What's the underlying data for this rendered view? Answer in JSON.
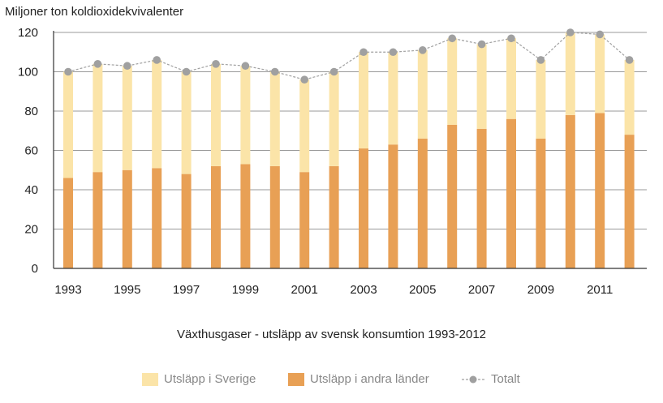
{
  "chart_data": {
    "type": "bar",
    "stacked": true,
    "title": "",
    "caption": "Växthusgaser - utsläpp av svensk konsumtion 1993-2012",
    "ylabel": "Miljoner ton koldioxidekvivalenter",
    "xlabel": "",
    "ylim": [
      0,
      120
    ],
    "yticks": [
      0,
      20,
      40,
      60,
      80,
      100,
      120
    ],
    "grid": true,
    "legend_position": "bottom",
    "categories": [
      "1993",
      "1994",
      "1995",
      "1996",
      "1997",
      "1998",
      "1999",
      "2000",
      "2001",
      "2002",
      "2003",
      "2004",
      "2005",
      "2006",
      "2007",
      "2008",
      "2009",
      "2010",
      "2011",
      "2012"
    ],
    "xtick_labels": [
      "1993",
      "",
      "1995",
      "",
      "1997",
      "",
      "1999",
      "",
      "2001",
      "",
      "2003",
      "",
      "2005",
      "",
      "2007",
      "",
      "2009",
      "",
      "2011",
      ""
    ],
    "series": [
      {
        "name": "Utsläpp i andra länder",
        "color": "#E8A055",
        "values": [
          46,
          49,
          50,
          51,
          48,
          52,
          53,
          52,
          49,
          52,
          61,
          63,
          66,
          73,
          71,
          76,
          66,
          78,
          79,
          68
        ]
      },
      {
        "name": "Utsläpp i Sverige",
        "color": "#FBE4A8",
        "values": [
          54,
          55,
          53,
          55,
          52,
          52,
          50,
          48,
          47,
          48,
          49,
          47,
          45,
          44,
          43,
          41,
          40,
          42,
          40,
          38
        ]
      },
      {
        "name": "Totalt",
        "type": "line",
        "color": "#A0A0A0",
        "values": [
          100,
          104,
          103,
          106,
          100,
          104,
          103,
          100,
          96,
          100,
          110,
          110,
          111,
          117,
          114,
          117,
          106,
          120,
          119,
          106
        ]
      }
    ],
    "legend_order": [
      "Utsläpp i Sverige",
      "Utsläpp i andra länder",
      "Totalt"
    ]
  }
}
